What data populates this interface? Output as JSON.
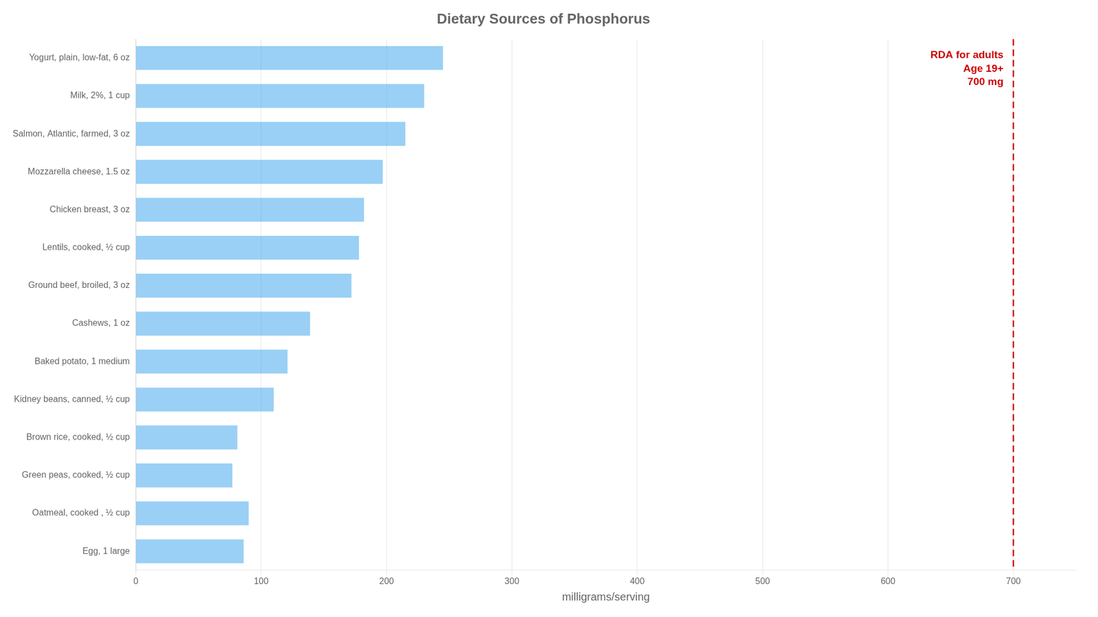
{
  "chart_data": {
    "type": "bar",
    "orientation": "horizontal",
    "title": "Dietary Sources of Phosphorus",
    "xlabel": "milligrams/serving",
    "categories": [
      "Yogurt, plain, low-fat, 6 oz",
      "Milk, 2%, 1 cup",
      "Salmon, Atlantic, farmed, 3 oz",
      "Mozzarella cheese, 1.5 oz",
      "Chicken breast, 3 oz",
      "Lentils, cooked, ½ cup",
      "Ground beef, broiled, 3 oz",
      "Cashews, 1 oz",
      "Baked potato, 1 medium",
      "Kidney beans, canned, ½ cup",
      "Brown rice, cooked, ½ cup",
      "Green peas, cooked, ½ cup",
      "Oatmeal, cooked , ½ cup",
      "Egg, 1 large"
    ],
    "values": [
      245,
      230,
      215,
      197,
      182,
      178,
      172,
      139,
      121,
      110,
      81,
      77,
      90,
      86
    ],
    "xlim": [
      0,
      750
    ],
    "xticks": [
      0,
      100,
      200,
      300,
      400,
      500,
      600,
      700
    ],
    "grid": true,
    "annotations": [
      {
        "x": 700,
        "text": [
          "RDA for adults",
          "Age 19+",
          "700 mg"
        ],
        "color": "#cc0000"
      }
    ]
  }
}
